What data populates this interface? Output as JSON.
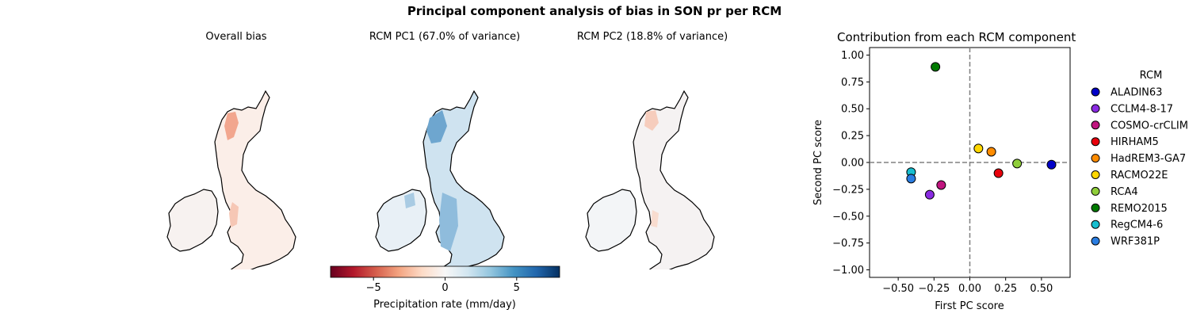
{
  "figure": {
    "title": "Principal component analysis of bias in SON pr per RCM"
  },
  "maps": {
    "overall": {
      "title": "Overall bias"
    },
    "pc1": {
      "title": "RCM PC1 (67.0% of variance)"
    },
    "pc2": {
      "title": "RCM PC2 (18.8% of variance)"
    }
  },
  "colorbar": {
    "label": "Precipitation rate (mm/day)",
    "range": [
      -8,
      8
    ],
    "ticks": [
      -5,
      0,
      5
    ],
    "colormap": "RdBu",
    "colors": [
      "#67001f",
      "#b2182b",
      "#d6604d",
      "#f4a582",
      "#fddbc7",
      "#f7f7f7",
      "#d1e5f0",
      "#92c5de",
      "#4393c3",
      "#2166ac",
      "#053061"
    ]
  },
  "chart_data": {
    "type": "scatter",
    "title": "Contribution from each RCM component",
    "xlabel": "First PC score",
    "ylabel": "Second PC score",
    "xlim": [
      -0.7,
      0.7
    ],
    "ylim": [
      -1.07,
      1.07
    ],
    "xticks": [
      -0.5,
      -0.25,
      0.0,
      0.25,
      0.5
    ],
    "xtick_labels": [
      "−0.50",
      "−0.25",
      "0.00",
      "0.25",
      "0.50"
    ],
    "yticks": [
      -1.0,
      -0.75,
      -0.5,
      -0.25,
      0.0,
      0.25,
      0.5,
      0.75,
      1.0
    ],
    "ytick_labels": [
      "−1.00",
      "−0.75",
      "−0.50",
      "−0.25",
      "0.00",
      "0.25",
      "0.50",
      "0.75",
      "1.00"
    ],
    "reference_lines": {
      "x": 0,
      "y": 0,
      "style": "dashed"
    },
    "grid": false,
    "legend": {
      "title": "RCM",
      "placement": "outside-right"
    },
    "series": [
      {
        "name": "ALADIN63",
        "x": 0.57,
        "y": -0.02,
        "color": "#0000c8"
      },
      {
        "name": "CCLM4-8-17",
        "x": -0.28,
        "y": -0.3,
        "color": "#8a2be2"
      },
      {
        "name": "COSMO-crCLIM",
        "x": -0.2,
        "y": -0.21,
        "color": "#c0157f"
      },
      {
        "name": "HIRHAM5",
        "x": 0.2,
        "y": -0.1,
        "color": "#e8000b"
      },
      {
        "name": "HadREM3-GA7",
        "x": 0.15,
        "y": 0.1,
        "color": "#ff8c00"
      },
      {
        "name": "RACMO22E",
        "x": 0.06,
        "y": 0.13,
        "color": "#ffd700"
      },
      {
        "name": "RCA4",
        "x": 0.33,
        "y": -0.01,
        "color": "#8fce3a"
      },
      {
        "name": "REMO2015",
        "x": -0.24,
        "y": 0.89,
        "color": "#007a00"
      },
      {
        "name": "RegCM4-6",
        "x": -0.41,
        "y": -0.09,
        "color": "#17becf"
      },
      {
        "name": "WRF381P",
        "x": -0.41,
        "y": -0.15,
        "color": "#2a7de1"
      }
    ]
  }
}
